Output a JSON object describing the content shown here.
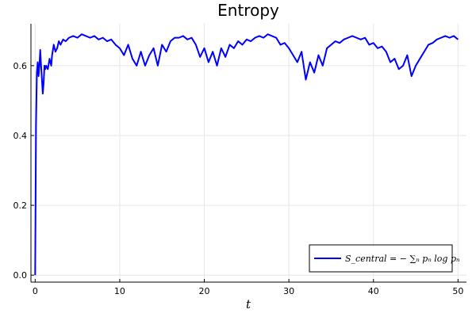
{
  "chart_data": {
    "type": "line",
    "title": "Entropy",
    "xlabel": "t",
    "ylabel": "",
    "xlim": [
      0,
      50
    ],
    "ylim": [
      0,
      0.7
    ],
    "xticks": [
      0,
      10,
      20,
      30,
      40,
      50
    ],
    "yticks": [
      0.0,
      0.2,
      0.4,
      0.6
    ],
    "xtick_labels": [
      "0",
      "10",
      "20",
      "30",
      "40",
      "50"
    ],
    "ytick_labels": [
      "0.0",
      "0.2",
      "0.4",
      "0.6"
    ],
    "grid": true,
    "legend_position": "bottom-right",
    "series": [
      {
        "name": "S_central = − ∑ₙ pₙ log pₙ",
        "color": "#0000ff",
        "x": [
          0,
          0.1,
          0.2,
          0.3,
          0.4,
          0.5,
          0.6,
          0.7,
          0.8,
          0.9,
          1.0,
          1.1,
          1.2,
          1.3,
          1.5,
          1.7,
          1.9,
          2.0,
          2.2,
          2.4,
          2.6,
          2.8,
          3.0,
          3.3,
          3.6,
          4.0,
          4.5,
          5.0,
          5.5,
          6.0,
          6.5,
          7.0,
          7.5,
          8.0,
          8.5,
          9.0,
          9.5,
          10.0,
          10.5,
          11.0,
          11.5,
          12.0,
          12.5,
          13.0,
          13.5,
          14.0,
          14.5,
          15.0,
          15.5,
          16.0,
          16.5,
          17.0,
          17.5,
          18.0,
          18.5,
          19.0,
          19.5,
          20.0,
          20.5,
          21.0,
          21.5,
          22.0,
          22.5,
          23.0,
          23.5,
          24.0,
          24.5,
          25.0,
          25.5,
          26.0,
          26.5,
          27.0,
          27.5,
          28.0,
          28.5,
          29.0,
          29.5,
          30.0,
          30.5,
          31.0,
          31.5,
          32.0,
          32.5,
          33.0,
          33.5,
          34.0,
          34.5,
          35.0,
          35.5,
          36.0,
          36.5,
          37.0,
          37.5,
          38.0,
          38.5,
          39.0,
          39.5,
          40.0,
          40.5,
          41.0,
          41.5,
          42.0,
          42.5,
          43.0,
          43.5,
          44.0,
          44.5,
          45.0,
          45.5,
          46.0,
          46.5,
          47.0,
          47.5,
          48.0,
          48.5,
          49.0,
          49.5,
          50.0
        ],
        "y": [
          0.0,
          0.43,
          0.58,
          0.61,
          0.57,
          0.6,
          0.645,
          0.6,
          0.56,
          0.52,
          0.55,
          0.6,
          0.59,
          0.6,
          0.59,
          0.62,
          0.6,
          0.63,
          0.66,
          0.64,
          0.65,
          0.67,
          0.66,
          0.675,
          0.67,
          0.68,
          0.685,
          0.68,
          0.69,
          0.685,
          0.68,
          0.685,
          0.675,
          0.68,
          0.67,
          0.675,
          0.66,
          0.65,
          0.63,
          0.66,
          0.62,
          0.6,
          0.64,
          0.6,
          0.63,
          0.65,
          0.6,
          0.66,
          0.64,
          0.67,
          0.68,
          0.68,
          0.685,
          0.675,
          0.68,
          0.66,
          0.625,
          0.65,
          0.61,
          0.64,
          0.6,
          0.65,
          0.625,
          0.66,
          0.65,
          0.67,
          0.66,
          0.675,
          0.67,
          0.68,
          0.685,
          0.68,
          0.69,
          0.685,
          0.68,
          0.66,
          0.665,
          0.65,
          0.63,
          0.61,
          0.64,
          0.56,
          0.61,
          0.58,
          0.63,
          0.6,
          0.65,
          0.66,
          0.67,
          0.665,
          0.675,
          0.68,
          0.685,
          0.68,
          0.675,
          0.68,
          0.66,
          0.665,
          0.65,
          0.655,
          0.64,
          0.61,
          0.62,
          0.59,
          0.6,
          0.63,
          0.57,
          0.6,
          0.62,
          0.64,
          0.66,
          0.665,
          0.675,
          0.68,
          0.685,
          0.68,
          0.685,
          0.675
        ]
      }
    ]
  },
  "legend": {
    "label": "S_central = − ∑ₙ pₙ log pₙ"
  }
}
